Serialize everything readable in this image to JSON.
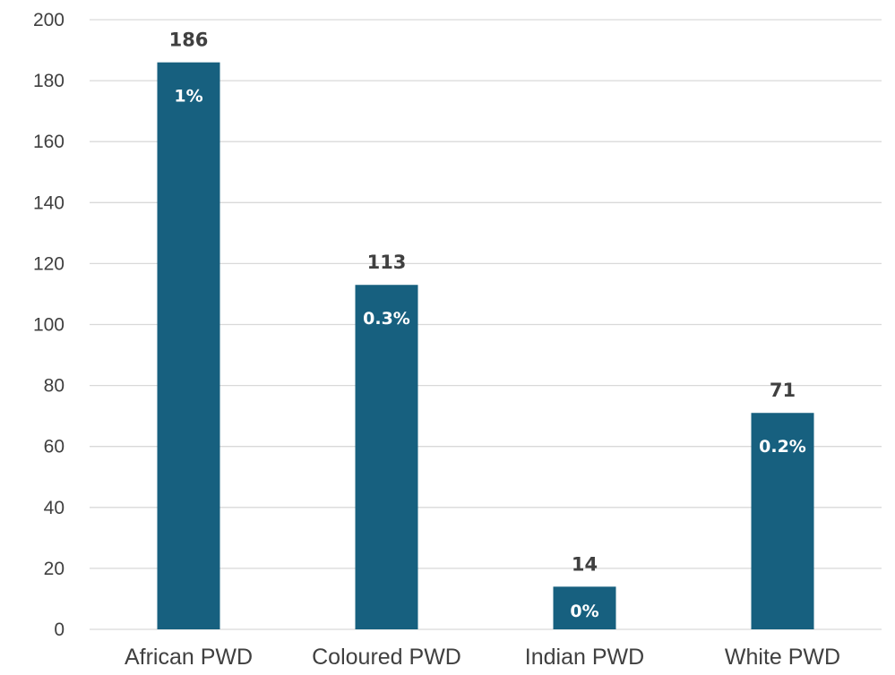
{
  "chart_data": {
    "type": "bar",
    "categories": [
      "African PWD",
      "Coloured PWD",
      "Indian PWD",
      "White PWD"
    ],
    "values": [
      186,
      113,
      14,
      71
    ],
    "percent_labels": [
      "1%",
      "0.3%",
      "0%",
      "0.2%"
    ],
    "ylim": [
      0,
      200
    ],
    "yticks": [
      0,
      20,
      40,
      60,
      80,
      100,
      120,
      140,
      160,
      180,
      200
    ],
    "grid": true,
    "bar_color": "#17607f",
    "title": "",
    "xlabel": "",
    "ylabel": ""
  }
}
